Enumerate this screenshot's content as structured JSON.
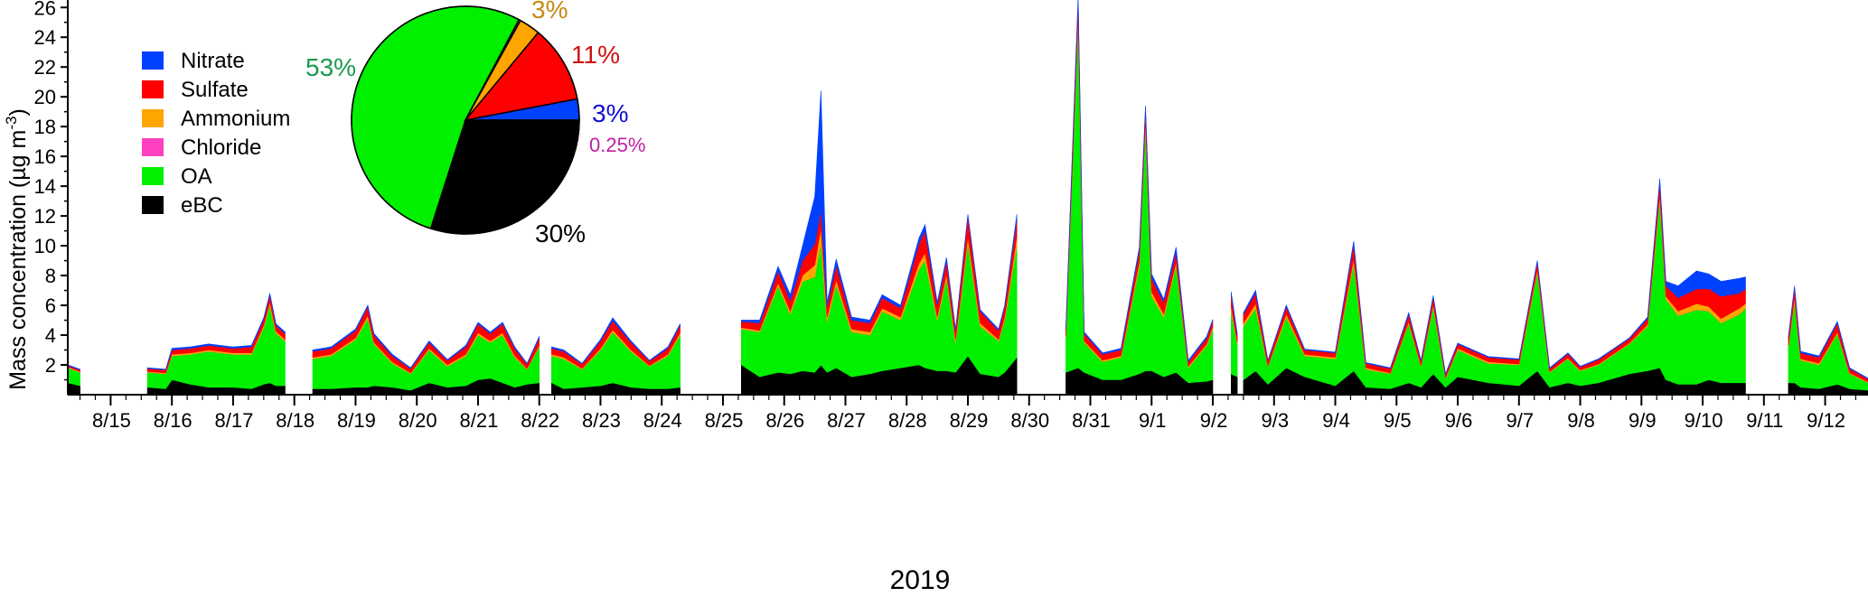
{
  "chart_data": {
    "type": "area",
    "ylabel_main": "Mass concentration (µg m",
    "ylabel_sup": "-3",
    "ylabel_tail": ")",
    "xlabel": "2019",
    "ylim": [
      0,
      26.5
    ],
    "yticks": [
      2,
      4,
      6,
      8,
      10,
      12,
      14,
      16,
      18,
      20,
      22,
      24,
      26
    ],
    "xlim": [
      14.3,
      43.7
    ],
    "xtick_labels": [
      "8/15",
      "8/16",
      "8/17",
      "8/18",
      "8/19",
      "8/20",
      "8/21",
      "8/22",
      "8/23",
      "8/24",
      "8/25",
      "8/26",
      "8/27",
      "8/28",
      "8/29",
      "8/30",
      "8/31",
      "9/1",
      "9/2",
      "9/3",
      "9/4",
      "9/5",
      "9/6",
      "9/7",
      "9/8",
      "9/9",
      "9/10",
      "9/11",
      "9/12"
    ],
    "xtick_days": [
      15,
      16,
      17,
      18,
      19,
      20,
      21,
      22,
      23,
      24,
      25,
      26,
      27,
      28,
      29,
      30,
      31,
      32,
      33,
      34,
      35,
      36,
      37,
      38,
      39,
      40,
      41,
      42,
      43
    ],
    "x_unit_note": "",
    "series": [
      {
        "name": "eBC",
        "color": "#000000"
      },
      {
        "name": "OA",
        "color": "#00f000"
      },
      {
        "name": "Chloride",
        "color": "#ff40c0"
      },
      {
        "name": "Ammonium",
        "color": "#ffa500"
      },
      {
        "name": "Sulfate",
        "color": "#ff0000"
      },
      {
        "name": "Nitrate",
        "color": "#0040ff"
      }
    ],
    "legend_order": [
      "Nitrate",
      "Sulfate",
      "Ammonium",
      "Chloride",
      "OA",
      "eBC"
    ],
    "legend_position": "top-left",
    "points": [
      [
        14.3,
        0.8,
        1.0,
        0.01,
        0.05,
        0.1,
        0.05
      ],
      [
        14.5,
        0.6,
        0.9,
        0.01,
        0.05,
        0.1,
        0.05
      ],
      [
        14.55,
        null,
        null,
        null,
        null,
        null,
        null
      ],
      [
        15.6,
        0.5,
        1.0,
        0.01,
        0.05,
        0.2,
        0.05
      ],
      [
        15.9,
        0.4,
        1.0,
        0.01,
        0.05,
        0.2,
        0.05
      ],
      [
        16.0,
        1.0,
        1.6,
        0.01,
        0.1,
        0.3,
        0.1
      ],
      [
        16.3,
        0.7,
        2.0,
        0.01,
        0.1,
        0.3,
        0.1
      ],
      [
        16.6,
        0.5,
        2.4,
        0.01,
        0.1,
        0.3,
        0.1
      ],
      [
        17.0,
        0.5,
        2.2,
        0.01,
        0.1,
        0.3,
        0.1
      ],
      [
        17.3,
        0.4,
        2.3,
        0.01,
        0.1,
        0.4,
        0.1
      ],
      [
        17.5,
        0.7,
        3.8,
        0.01,
        0.15,
        0.4,
        0.1
      ],
      [
        17.6,
        0.8,
        5.2,
        0.01,
        0.2,
        0.5,
        0.1
      ],
      [
        17.7,
        0.6,
        3.5,
        0.01,
        0.15,
        0.4,
        0.1
      ],
      [
        17.85,
        0.6,
        3.0,
        0.01,
        0.1,
        0.4,
        0.1
      ],
      [
        17.9,
        null,
        null,
        null,
        null,
        null,
        null
      ],
      [
        18.3,
        0.4,
        2.0,
        0.01,
        0.1,
        0.4,
        0.1
      ],
      [
        18.6,
        0.4,
        2.2,
        0.01,
        0.1,
        0.4,
        0.1
      ],
      [
        19.0,
        0.5,
        3.2,
        0.01,
        0.1,
        0.5,
        0.1
      ],
      [
        19.2,
        0.5,
        4.6,
        0.01,
        0.2,
        0.6,
        0.1
      ],
      [
        19.3,
        0.6,
        2.8,
        0.01,
        0.1,
        0.5,
        0.1
      ],
      [
        19.6,
        0.5,
        1.6,
        0.01,
        0.1,
        0.4,
        0.1
      ],
      [
        19.9,
        0.3,
        1.1,
        0.01,
        0.05,
        0.3,
        0.05
      ],
      [
        20.2,
        0.8,
        2.2,
        0.01,
        0.1,
        0.4,
        0.1
      ],
      [
        20.5,
        0.5,
        1.4,
        0.01,
        0.1,
        0.3,
        0.05
      ],
      [
        20.8,
        0.6,
        2.0,
        0.01,
        0.1,
        0.5,
        0.1
      ],
      [
        21.0,
        1.0,
        3.0,
        0.01,
        0.15,
        0.6,
        0.1
      ],
      [
        21.2,
        1.1,
        2.4,
        0.01,
        0.1,
        0.5,
        0.1
      ],
      [
        21.4,
        0.8,
        3.2,
        0.01,
        0.15,
        0.6,
        0.1
      ],
      [
        21.6,
        0.5,
        2.0,
        0.01,
        0.1,
        0.5,
        0.1
      ],
      [
        21.8,
        0.7,
        1.0,
        0.01,
        0.05,
        0.3,
        0.05
      ],
      [
        22.0,
        0.8,
        2.4,
        0.01,
        0.1,
        0.5,
        0.1
      ],
      [
        22.1,
        null,
        null,
        null,
        null,
        null,
        null
      ],
      [
        22.2,
        0.8,
        1.8,
        0.01,
        0.1,
        0.4,
        0.1
      ],
      [
        22.4,
        0.4,
        2.0,
        0.01,
        0.1,
        0.4,
        0.1
      ],
      [
        22.7,
        0.5,
        1.2,
        0.01,
        0.05,
        0.3,
        0.05
      ],
      [
        23.0,
        0.6,
        2.4,
        0.01,
        0.1,
        0.5,
        0.1
      ],
      [
        23.2,
        0.8,
        3.4,
        0.01,
        0.15,
        0.6,
        0.2
      ],
      [
        23.5,
        0.5,
        2.4,
        0.01,
        0.1,
        0.5,
        0.1
      ],
      [
        23.8,
        0.4,
        1.5,
        0.01,
        0.05,
        0.3,
        0.05
      ],
      [
        24.1,
        0.4,
        2.2,
        0.01,
        0.1,
        0.4,
        0.1
      ],
      [
        24.3,
        0.5,
        3.5,
        0.01,
        0.15,
        0.5,
        0.1
      ],
      [
        24.35,
        null,
        null,
        null,
        null,
        null,
        null
      ],
      [
        25.3,
        2.0,
        2.4,
        0.01,
        0.1,
        0.4,
        0.1
      ],
      [
        25.6,
        1.2,
        3.0,
        0.01,
        0.1,
        0.5,
        0.2
      ],
      [
        25.9,
        1.5,
        5.8,
        0.01,
        0.2,
        0.8,
        0.3
      ],
      [
        26.1,
        1.4,
        4.0,
        0.01,
        0.2,
        0.7,
        0.4
      ],
      [
        26.3,
        1.6,
        6.0,
        0.01,
        0.4,
        1.0,
        1.0
      ],
      [
        26.5,
        1.5,
        6.4,
        0.01,
        0.8,
        1.4,
        3.2
      ],
      [
        26.6,
        2.0,
        8.2,
        0.01,
        1.0,
        1.2,
        8.0
      ],
      [
        26.7,
        1.5,
        3.4,
        0.01,
        0.3,
        0.7,
        0.3
      ],
      [
        26.85,
        1.8,
        5.6,
        0.01,
        0.3,
        1.0,
        0.4
      ],
      [
        27.1,
        1.2,
        3.0,
        0.01,
        0.2,
        0.6,
        0.2
      ],
      [
        27.4,
        1.4,
        2.6,
        0.01,
        0.2,
        0.6,
        0.2
      ],
      [
        27.6,
        1.6,
        4.0,
        0.01,
        0.2,
        0.7,
        0.2
      ],
      [
        27.9,
        1.8,
        3.2,
        0.01,
        0.2,
        0.6,
        0.2
      ],
      [
        28.2,
        2.0,
        6.4,
        0.01,
        0.4,
        1.3,
        0.4
      ],
      [
        28.3,
        1.8,
        7.2,
        0.01,
        0.5,
        1.5,
        0.4
      ],
      [
        28.5,
        1.6,
        3.4,
        0.01,
        0.2,
        0.8,
        0.2
      ],
      [
        28.65,
        1.6,
        6.2,
        0.01,
        0.3,
        0.9,
        0.2
      ],
      [
        28.8,
        1.5,
        2.0,
        0.01,
        0.2,
        0.6,
        0.1
      ],
      [
        29.0,
        2.6,
        7.6,
        0.01,
        0.4,
        1.4,
        0.1
      ],
      [
        29.2,
        1.4,
        3.2,
        0.01,
        0.2,
        0.8,
        0.1
      ],
      [
        29.5,
        1.2,
        2.4,
        0.01,
        0.1,
        0.6,
        0.1
      ],
      [
        29.6,
        1.5,
        3.5,
        0.01,
        0.2,
        0.7,
        0.1
      ],
      [
        29.8,
        2.5,
        7.5,
        0.01,
        0.6,
        1.2,
        0.3
      ],
      [
        29.85,
        null,
        null,
        null,
        null,
        null,
        null
      ],
      [
        30.6,
        1.5,
        2.3,
        0.01,
        0.1,
        0.5,
        0.1
      ],
      [
        30.8,
        1.8,
        23.2,
        0.01,
        0.4,
        1.1,
        0.3
      ],
      [
        30.9,
        1.5,
        2.0,
        0.01,
        0.1,
        0.5,
        0.1
      ],
      [
        31.2,
        1.0,
        1.2,
        0.01,
        0.1,
        0.4,
        0.1
      ],
      [
        31.5,
        1.0,
        1.5,
        0.01,
        0.1,
        0.4,
        0.1
      ],
      [
        31.8,
        1.4,
        7.2,
        0.01,
        0.3,
        0.8,
        0.2
      ],
      [
        31.9,
        1.6,
        16.5,
        0.01,
        0.3,
        0.8,
        0.2
      ],
      [
        32.0,
        1.6,
        5.0,
        0.01,
        0.3,
        0.9,
        0.3
      ],
      [
        32.2,
        1.2,
        4.0,
        0.01,
        0.2,
        0.8,
        0.2
      ],
      [
        32.4,
        1.5,
        7.2,
        0.01,
        0.2,
        0.7,
        0.3
      ],
      [
        32.6,
        0.8,
        1.0,
        0.01,
        0.1,
        0.3,
        0.1
      ],
      [
        32.9,
        0.9,
        2.4,
        0.01,
        0.1,
        0.4,
        0.1
      ],
      [
        33.0,
        1.0,
        3.4,
        0.01,
        0.15,
        0.4,
        0.1
      ],
      [
        33.05,
        null,
        null,
        null,
        null,
        null,
        null
      ],
      [
        33.3,
        1.4,
        4.2,
        0.01,
        0.3,
        0.8,
        0.2
      ],
      [
        33.4,
        1.2,
        2.2,
        0.01,
        0.1,
        0.5,
        0.1
      ],
      [
        33.45,
        null,
        null,
        null,
        null,
        null,
        null
      ],
      [
        33.5,
        1.0,
        3.6,
        0.01,
        0.2,
        0.6,
        0.1
      ],
      [
        33.7,
        1.6,
        4.2,
        0.01,
        0.3,
        0.7,
        0.2
      ],
      [
        33.9,
        0.7,
        1.2,
        0.01,
        0.05,
        0.3,
        0.05
      ],
      [
        34.2,
        1.8,
        3.4,
        0.01,
        0.2,
        0.5,
        0.1
      ],
      [
        34.5,
        1.2,
        1.4,
        0.01,
        0.1,
        0.3,
        0.05
      ],
      [
        35.0,
        0.6,
        1.8,
        0.01,
        0.1,
        0.3,
        0.05
      ],
      [
        35.3,
        1.6,
        7.2,
        0.01,
        0.3,
        1.0,
        0.2
      ],
      [
        35.5,
        0.5,
        1.2,
        0.01,
        0.1,
        0.3,
        0.05
      ],
      [
        35.9,
        0.4,
        1.0,
        0.01,
        0.05,
        0.3,
        0.05
      ],
      [
        36.2,
        0.8,
        4.0,
        0.01,
        0.1,
        0.5,
        0.1
      ],
      [
        36.4,
        0.5,
        1.4,
        0.01,
        0.05,
        0.3,
        0.05
      ],
      [
        36.6,
        1.4,
        4.5,
        0.01,
        0.15,
        0.5,
        0.1
      ],
      [
        36.8,
        0.5,
        0.6,
        0.01,
        0.05,
        0.2,
        0.05
      ],
      [
        37.0,
        1.2,
        1.8,
        0.01,
        0.1,
        0.3,
        0.05
      ],
      [
        37.5,
        0.8,
        1.3,
        0.01,
        0.1,
        0.3,
        0.05
      ],
      [
        38.0,
        0.6,
        1.4,
        0.01,
        0.05,
        0.3,
        0.05
      ],
      [
        38.3,
        1.6,
        6.6,
        0.01,
        0.2,
        0.5,
        0.1
      ],
      [
        38.5,
        0.5,
        1.0,
        0.01,
        0.05,
        0.2,
        0.05
      ],
      [
        38.8,
        0.8,
        1.6,
        0.01,
        0.05,
        0.3,
        0.05
      ],
      [
        39.0,
        0.6,
        1.0,
        0.01,
        0.05,
        0.2,
        0.05
      ],
      [
        39.3,
        0.8,
        1.2,
        0.01,
        0.05,
        0.3,
        0.05
      ],
      [
        39.8,
        1.4,
        2.0,
        0.01,
        0.05,
        0.3,
        0.05
      ],
      [
        40.1,
        1.6,
        3.0,
        0.01,
        0.1,
        0.4,
        0.1
      ],
      [
        40.3,
        1.8,
        11.3,
        0.01,
        0.3,
        0.9,
        0.2
      ],
      [
        40.4,
        1.0,
        5.4,
        0.01,
        0.2,
        0.7,
        0.3
      ],
      [
        40.6,
        0.7,
        4.6,
        0.01,
        0.3,
        0.9,
        0.8
      ],
      [
        40.9,
        0.7,
        5.0,
        0.01,
        0.4,
        1.0,
        1.2
      ],
      [
        41.1,
        1.0,
        4.6,
        0.01,
        0.3,
        1.2,
        1.0
      ],
      [
        41.3,
        0.8,
        4.0,
        0.01,
        0.3,
        1.5,
        1.0
      ],
      [
        41.6,
        0.8,
        4.6,
        0.01,
        0.4,
        1.0,
        1.0
      ],
      [
        41.7,
        0.8,
        5.0,
        0.01,
        0.3,
        1.0,
        0.8
      ],
      [
        41.75,
        null,
        null,
        null,
        null,
        null,
        null
      ],
      [
        42.4,
        0.8,
        2.4,
        0.01,
        0.1,
        0.5,
        0.1
      ],
      [
        42.5,
        0.8,
        5.5,
        0.01,
        0.2,
        0.7,
        0.1
      ],
      [
        42.6,
        0.5,
        1.8,
        0.01,
        0.1,
        0.4,
        0.1
      ],
      [
        42.9,
        0.4,
        1.6,
        0.01,
        0.1,
        0.4,
        0.1
      ],
      [
        43.2,
        0.7,
        3.4,
        0.01,
        0.1,
        0.6,
        0.1
      ],
      [
        43.4,
        0.4,
        1.0,
        0.01,
        0.05,
        0.3,
        0.05
      ],
      [
        43.7,
        0.3,
        0.5,
        0.01,
        0.05,
        0.2,
        0.05
      ]
    ],
    "pie": {
      "type": "pie",
      "slices": [
        {
          "name": "Nitrate",
          "value": 3,
          "label": "3%",
          "color": "#0040ff",
          "label_color": "#1010d0"
        },
        {
          "name": "eBC",
          "value": 30,
          "label": "30%",
          "color": "#000000",
          "label_color": "#000000"
        },
        {
          "name": "OA",
          "value": 53,
          "label": "53%",
          "color": "#00f000",
          "label_color": "#1a9a50"
        },
        {
          "name": "Chloride",
          "value": 0.25,
          "label": "0.25%",
          "color": "#ff40c0",
          "label_color": "#c020a0"
        },
        {
          "name": "Ammonium",
          "value": 3,
          "label": "3%",
          "color": "#ffa500",
          "label_color": "#c88a10"
        },
        {
          "name": "Sulfate",
          "value": 11,
          "label": "11%",
          "color": "#ff0000",
          "label_color": "#d01010"
        }
      ]
    }
  }
}
